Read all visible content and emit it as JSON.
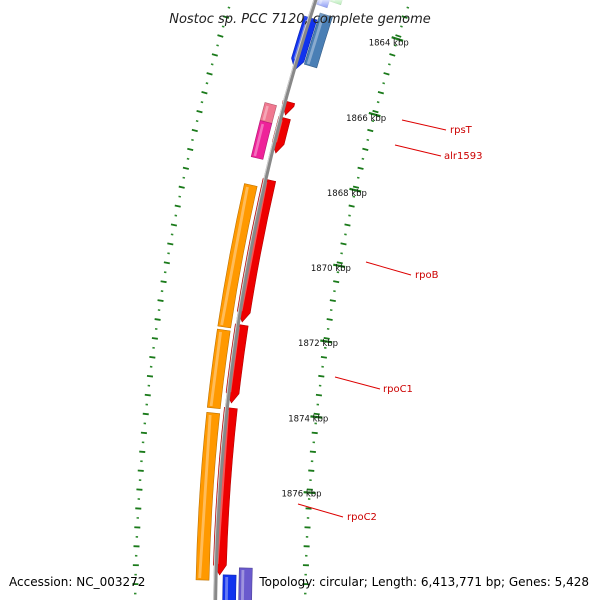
{
  "title": "Nostoc sp. PCC 7120, complete genome",
  "footer": {
    "accession": "Accession: NC_003272",
    "topology": "Topology: circular; Length: 6,413,771 bp; Genes: 5,428"
  },
  "colors": {
    "backbone": "#888888",
    "tick_dot": "#2e8b2e",
    "tick_major": "#1a7a1a",
    "label_line": "#dd0000",
    "gene_red": "#ee0000",
    "gene_orange": "#ff9900",
    "gene_magenta": "#ee2299",
    "gene_pink": "#f07890",
    "gene_blue": "#1133ee",
    "gene_steelblue": "#4a7fb5",
    "gene_purple": "#6a5acd",
    "gene_green": "#33cc33"
  },
  "ticks": [
    {
      "kbp": 1864,
      "label": "1864 kbp"
    },
    {
      "kbp": 1866,
      "label": "1866 kbp"
    },
    {
      "kbp": 1868,
      "label": "1868 kbp"
    },
    {
      "kbp": 1870,
      "label": "1870 kbp"
    },
    {
      "kbp": 1872,
      "label": "1872 kbp"
    },
    {
      "kbp": 1874,
      "label": "1874 kbp"
    },
    {
      "kbp": 1876,
      "label": "1876 kbp"
    }
  ],
  "gene_labels": [
    "rpsT",
    "alr1593",
    "rpoB",
    "rpoC1",
    "rpoC2"
  ],
  "features": [
    {
      "name": "gene-green-top",
      "color": "gene_green"
    },
    {
      "name": "gene-blue-top",
      "color": "gene_blue"
    },
    {
      "name": "gene-steelblue-top",
      "color": "gene_steelblue"
    },
    {
      "name": "gene-blue-1864",
      "color": "gene_blue"
    },
    {
      "name": "rpsT-cds",
      "color": "gene_red"
    },
    {
      "name": "rpsT-gene",
      "color": "gene_pink"
    },
    {
      "name": "alr1593-cds",
      "color": "gene_red"
    },
    {
      "name": "alr1593-gene",
      "color": "gene_magenta"
    },
    {
      "name": "rpoB-cds",
      "color": "gene_red"
    },
    {
      "name": "rpoB-gene",
      "color": "gene_orange"
    },
    {
      "name": "rpoC1-cds",
      "color": "gene_red"
    },
    {
      "name": "rpoC1-gene",
      "color": "gene_orange"
    },
    {
      "name": "rpoC2-cds",
      "color": "gene_red"
    },
    {
      "name": "rpoC2-gene",
      "color": "gene_orange"
    },
    {
      "name": "gene-purple-bottom",
      "color": "gene_purple"
    },
    {
      "name": "gene-blue-bottom",
      "color": "gene_blue"
    }
  ]
}
